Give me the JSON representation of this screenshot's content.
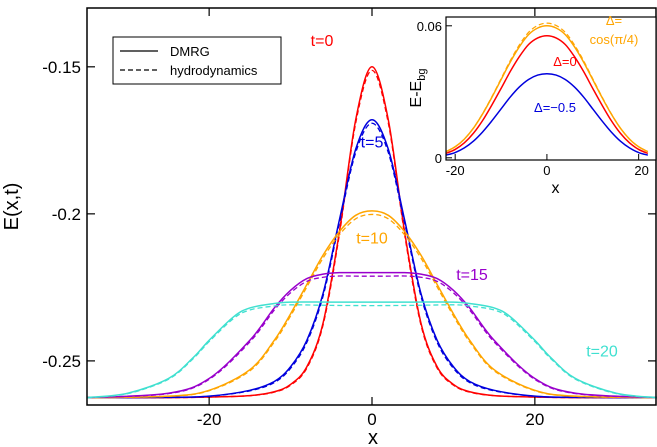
{
  "chart_data": [
    {
      "type": "line",
      "xlabel": "x",
      "ylabel": "E(x,t)",
      "xlim": [
        -35,
        35
      ],
      "ylim": [
        -0.265,
        -0.13
      ],
      "xticks": [
        -20,
        0,
        20
      ],
      "xtick_labels": [
        "-20",
        "0",
        "20"
      ],
      "yticks": [
        -0.15,
        -0.2,
        -0.25
      ],
      "ytick_labels": [
        "-0.15",
        "-0.2",
        "-0.25"
      ],
      "grid": false,
      "legend_position": "top-left",
      "legend": [
        {
          "label": "DMRG",
          "style": "solid"
        },
        {
          "label": "hydrodynamics",
          "style": "dashed"
        }
      ],
      "series": [
        {
          "label": "t=0",
          "t": 0,
          "color": "#ff0000",
          "x": [
            -35,
            -25,
            -20,
            -15,
            -12,
            -10,
            -8,
            -6,
            -4,
            -2,
            0,
            2,
            4,
            6,
            8,
            10,
            12,
            15,
            20,
            25,
            35
          ],
          "y": [
            -0.2625,
            -0.2625,
            -0.2623,
            -0.2618,
            -0.2605,
            -0.258,
            -0.252,
            -0.237,
            -0.206,
            -0.168,
            -0.15,
            -0.168,
            -0.206,
            -0.237,
            -0.252,
            -0.258,
            -0.2605,
            -0.2618,
            -0.2623,
            -0.2625,
            -0.2625
          ]
        },
        {
          "label": "t=5",
          "t": 5,
          "color": "#0000dd",
          "x": [
            -35,
            -25,
            -20,
            -15,
            -12,
            -10,
            -8,
            -6,
            -4,
            -2,
            0,
            2,
            4,
            6,
            8,
            10,
            12,
            15,
            20,
            25,
            35
          ],
          "y": [
            -0.2625,
            -0.2624,
            -0.262,
            -0.26,
            -0.257,
            -0.252,
            -0.243,
            -0.227,
            -0.202,
            -0.178,
            -0.168,
            -0.178,
            -0.202,
            -0.227,
            -0.243,
            -0.252,
            -0.257,
            -0.26,
            -0.262,
            -0.2624,
            -0.2625
          ]
        },
        {
          "label": "t=10",
          "t": 10,
          "color": "#ffa500",
          "x": [
            -35,
            -25,
            -20,
            -15,
            -12,
            -10,
            -8,
            -6,
            -4,
            -2,
            0,
            2,
            4,
            6,
            8,
            10,
            12,
            15,
            20,
            25,
            35
          ],
          "y": [
            -0.2625,
            -0.262,
            -0.26,
            -0.253,
            -0.243,
            -0.234,
            -0.224,
            -0.214,
            -0.206,
            -0.2005,
            -0.199,
            -0.2005,
            -0.206,
            -0.214,
            -0.224,
            -0.234,
            -0.243,
            -0.253,
            -0.26,
            -0.262,
            -0.2625
          ]
        },
        {
          "label": "t=15",
          "t": 15,
          "color": "#9900cc",
          "x": [
            -35,
            -25,
            -20,
            -15,
            -12,
            -10,
            -8,
            -6,
            -4,
            -2,
            0,
            2,
            4,
            6,
            8,
            10,
            12,
            15,
            20,
            25,
            35
          ],
          "y": [
            -0.2625,
            -0.261,
            -0.256,
            -0.243,
            -0.232,
            -0.226,
            -0.222,
            -0.2205,
            -0.22,
            -0.22,
            -0.22,
            -0.22,
            -0.22,
            -0.2205,
            -0.222,
            -0.226,
            -0.232,
            -0.243,
            -0.256,
            -0.261,
            -0.2625
          ]
        },
        {
          "label": "t=20",
          "t": 20,
          "color": "#40e0d0",
          "x": [
            -35,
            -30,
            -25,
            -22,
            -20,
            -17,
            -15,
            -12,
            -10,
            -5,
            0,
            5,
            10,
            12,
            15,
            17,
            20,
            22,
            25,
            30,
            35
          ],
          "y": [
            -0.2625,
            -0.261,
            -0.256,
            -0.249,
            -0.243,
            -0.235,
            -0.232,
            -0.2305,
            -0.23,
            -0.23,
            -0.23,
            -0.23,
            -0.23,
            -0.2305,
            -0.232,
            -0.235,
            -0.243,
            -0.249,
            -0.256,
            -0.261,
            -0.2625
          ]
        }
      ]
    },
    {
      "type": "line",
      "xlabel": "x",
      "ylabel": "E-E",
      "ylabel_subscript": "bg",
      "xlim": [
        -22,
        24
      ],
      "ylim": [
        -0.001,
        0.064
      ],
      "xticks": [
        -20,
        0,
        20
      ],
      "xtick_labels": [
        "-20",
        "0",
        "20"
      ],
      "yticks": [
        0,
        0.06
      ],
      "ytick_labels": [
        "0",
        "0.06"
      ],
      "grid": false,
      "series": [
        {
          "label": "Δ=",
          "label_line2": "cos(π/4)",
          "color": "#ffa500",
          "x": [
            -22,
            -20,
            -18,
            -16,
            -14,
            -12,
            -10,
            -8,
            -6,
            -4,
            -2,
            0,
            2,
            4,
            6,
            8,
            10,
            12,
            14,
            16,
            18,
            20,
            22
          ],
          "y": [
            0.0028,
            0.005,
            0.0085,
            0.0135,
            0.02,
            0.0275,
            0.0355,
            0.0435,
            0.0505,
            0.056,
            0.059,
            0.06,
            0.059,
            0.056,
            0.0505,
            0.0435,
            0.0355,
            0.0275,
            0.02,
            0.0135,
            0.0085,
            0.005,
            0.0028
          ]
        },
        {
          "label": "Δ=0",
          "color": "#ff0000",
          "x": [
            -22,
            -20,
            -18,
            -16,
            -14,
            -12,
            -10,
            -8,
            -6,
            -4,
            -2,
            0,
            2,
            4,
            6,
            8,
            10,
            12,
            14,
            16,
            18,
            20,
            22
          ],
          "y": [
            0.002,
            0.0038,
            0.0068,
            0.0112,
            0.017,
            0.024,
            0.0315,
            0.0392,
            0.046,
            0.0515,
            0.0545,
            0.0555,
            0.0545,
            0.0515,
            0.046,
            0.0392,
            0.0315,
            0.024,
            0.017,
            0.0112,
            0.0068,
            0.0038,
            0.002
          ]
        },
        {
          "label": "Δ=−0.5",
          "color": "#0000dd",
          "x": [
            -22,
            -20,
            -18,
            -16,
            -14,
            -12,
            -10,
            -8,
            -6,
            -4,
            -2,
            0,
            2,
            4,
            6,
            8,
            10,
            12,
            14,
            16,
            18,
            20,
            22
          ],
          "y": [
            0.0012,
            0.0024,
            0.0045,
            0.0076,
            0.0118,
            0.0168,
            0.0222,
            0.0276,
            0.0322,
            0.0356,
            0.0376,
            0.0382,
            0.0376,
            0.0356,
            0.0322,
            0.0276,
            0.0222,
            0.0168,
            0.0118,
            0.0076,
            0.0045,
            0.0024,
            0.0012
          ]
        }
      ]
    }
  ]
}
